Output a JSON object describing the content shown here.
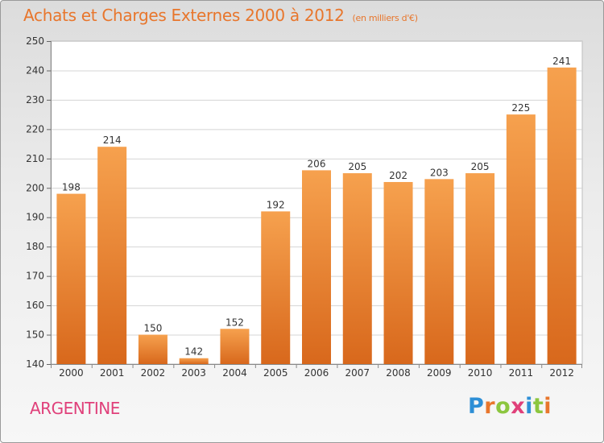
{
  "header": {
    "title": "Achats et Charges Externes 2000 à 2012",
    "unit": "(en milliers d'€)"
  },
  "footer": {
    "country": "ARGENTINE",
    "brand": "Proxiti",
    "brand_colors": [
      "#2e8fd6",
      "#e8762c",
      "#8cc63f",
      "#e0407a",
      "#2e8fd6",
      "#8cc63f",
      "#e8762c"
    ]
  },
  "colors": {
    "bar_top": "#f6a14e",
    "bar_bottom": "#d8681c",
    "title": "#e8762c",
    "country": "#e0407a"
  },
  "chart_data": {
    "type": "bar",
    "title": "Achats et Charges Externes 2000 à 2012",
    "xlabel": "",
    "ylabel": "",
    "categories": [
      "2000",
      "2001",
      "2002",
      "2003",
      "2004",
      "2005",
      "2006",
      "2007",
      "2008",
      "2009",
      "2010",
      "2011",
      "2012"
    ],
    "values": [
      198,
      214,
      150,
      142,
      152,
      192,
      206,
      205,
      202,
      203,
      205,
      225,
      241
    ],
    "ylim": [
      140,
      250
    ],
    "yticks": [
      140,
      150,
      160,
      170,
      180,
      190,
      200,
      210,
      220,
      230,
      240,
      250
    ],
    "grid": true
  }
}
